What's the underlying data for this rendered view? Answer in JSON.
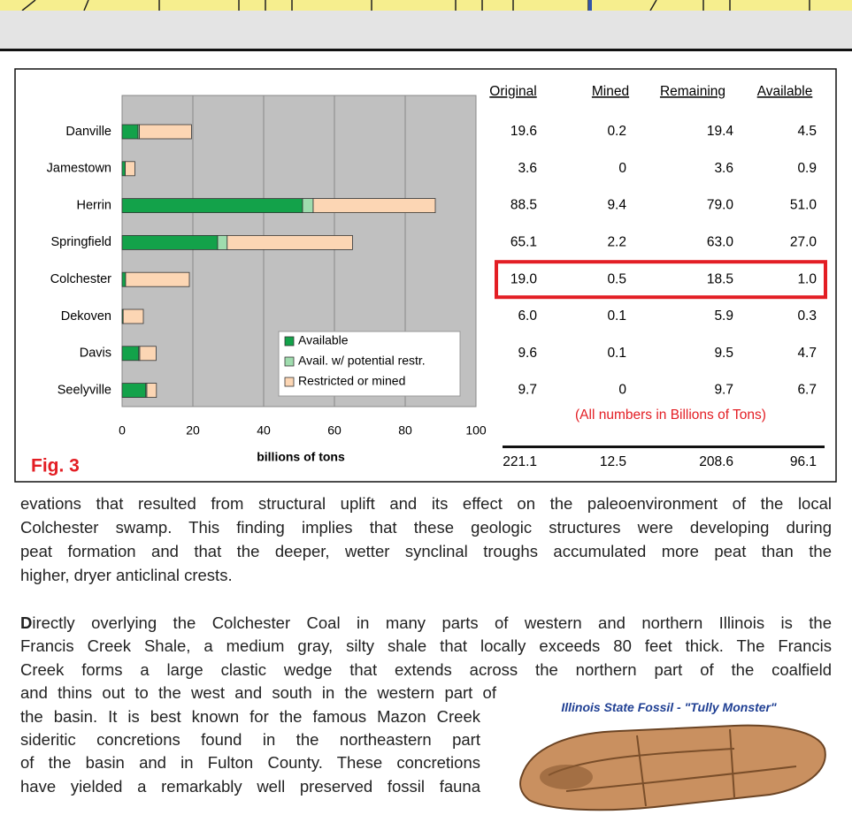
{
  "chart_data": {
    "type": "bar",
    "orientation": "horizontal",
    "stacked": true,
    "categories": [
      "Danville",
      "Jamestown",
      "Herrin",
      "Springfield",
      "Colchester",
      "Dekoven",
      "Davis",
      "Seelyville"
    ],
    "series": [
      {
        "name": "Available",
        "color": "#13a24a",
        "values": [
          4.5,
          0.9,
          51.0,
          27.0,
          1.0,
          0.3,
          4.7,
          6.7
        ]
      },
      {
        "name": "Avail. w/ potential restr.",
        "color": "#9fdcae",
        "values": [
          0.4,
          0,
          3.0,
          2.7,
          0,
          0,
          0.3,
          0.3
        ]
      },
      {
        "name": "Restricted or mined",
        "color": "#fcd6b4",
        "values": [
          14.7,
          2.7,
          34.5,
          35.4,
          18.0,
          5.7,
          4.6,
          2.7
        ]
      }
    ],
    "xlim": [
      0,
      100
    ],
    "xticks": [
      0,
      20,
      40,
      60,
      80,
      100
    ],
    "xlabel": "billions of tons",
    "grid": true
  },
  "figure_label": "Fig. 3",
  "table": {
    "columns": [
      "Original",
      "Mined",
      "Remaining",
      "Available"
    ],
    "rows": [
      [
        "19.6",
        "0.2",
        "19.4",
        "4.5"
      ],
      [
        "3.6",
        "0",
        "3.6",
        "0.9"
      ],
      [
        "88.5",
        "9.4",
        "79.0",
        "51.0"
      ],
      [
        "65.1",
        "2.2",
        "63.0",
        "27.0"
      ],
      [
        "19.0",
        "0.5",
        "18.5",
        "1.0"
      ],
      [
        "6.0",
        "0.1",
        "5.9",
        "0.3"
      ],
      [
        "9.6",
        "0.1",
        "9.5",
        "4.7"
      ],
      [
        "9.7",
        "0",
        "9.7",
        "6.7"
      ]
    ],
    "highlight_row": 4,
    "note": "(All numbers in Billions of Tons)",
    "totals": [
      "221.1",
      "12.5",
      "208.6",
      "96.1"
    ]
  },
  "body": {
    "paragraph1": [
      "evations that resulted from structural uplift and its effect on the paleoenvironment of the local",
      "Colchester swamp. This finding implies that these geologic structures were developing during",
      "peat formation and that the deeper, wetter synclinal troughs accumulated more peat than the",
      "higher, dryer anticlinal crests."
    ],
    "paragraph2_initial": "D",
    "paragraph2": [
      "irectly overlying the Colchester Coal in many parts of western and northern Illinois is the",
      "Francis Creek Shale, a medium gray, silty shale that locally exceeds 80 feet thick. The Francis",
      "Creek forms a large clastic wedge that extends across the northern part of the coalfield",
      "and thins out to the west and south in the western part of",
      "the basin. It is best known for the famous Mazon Creek",
      "sideritic concretions found in the northeastern part",
      "of the basin and in Fulton County. These concretions",
      "have yielded a remarkably well preserved fossil fauna"
    ]
  },
  "fossil_caption": "Illinois State Fossil - \"Tully Monster\""
}
